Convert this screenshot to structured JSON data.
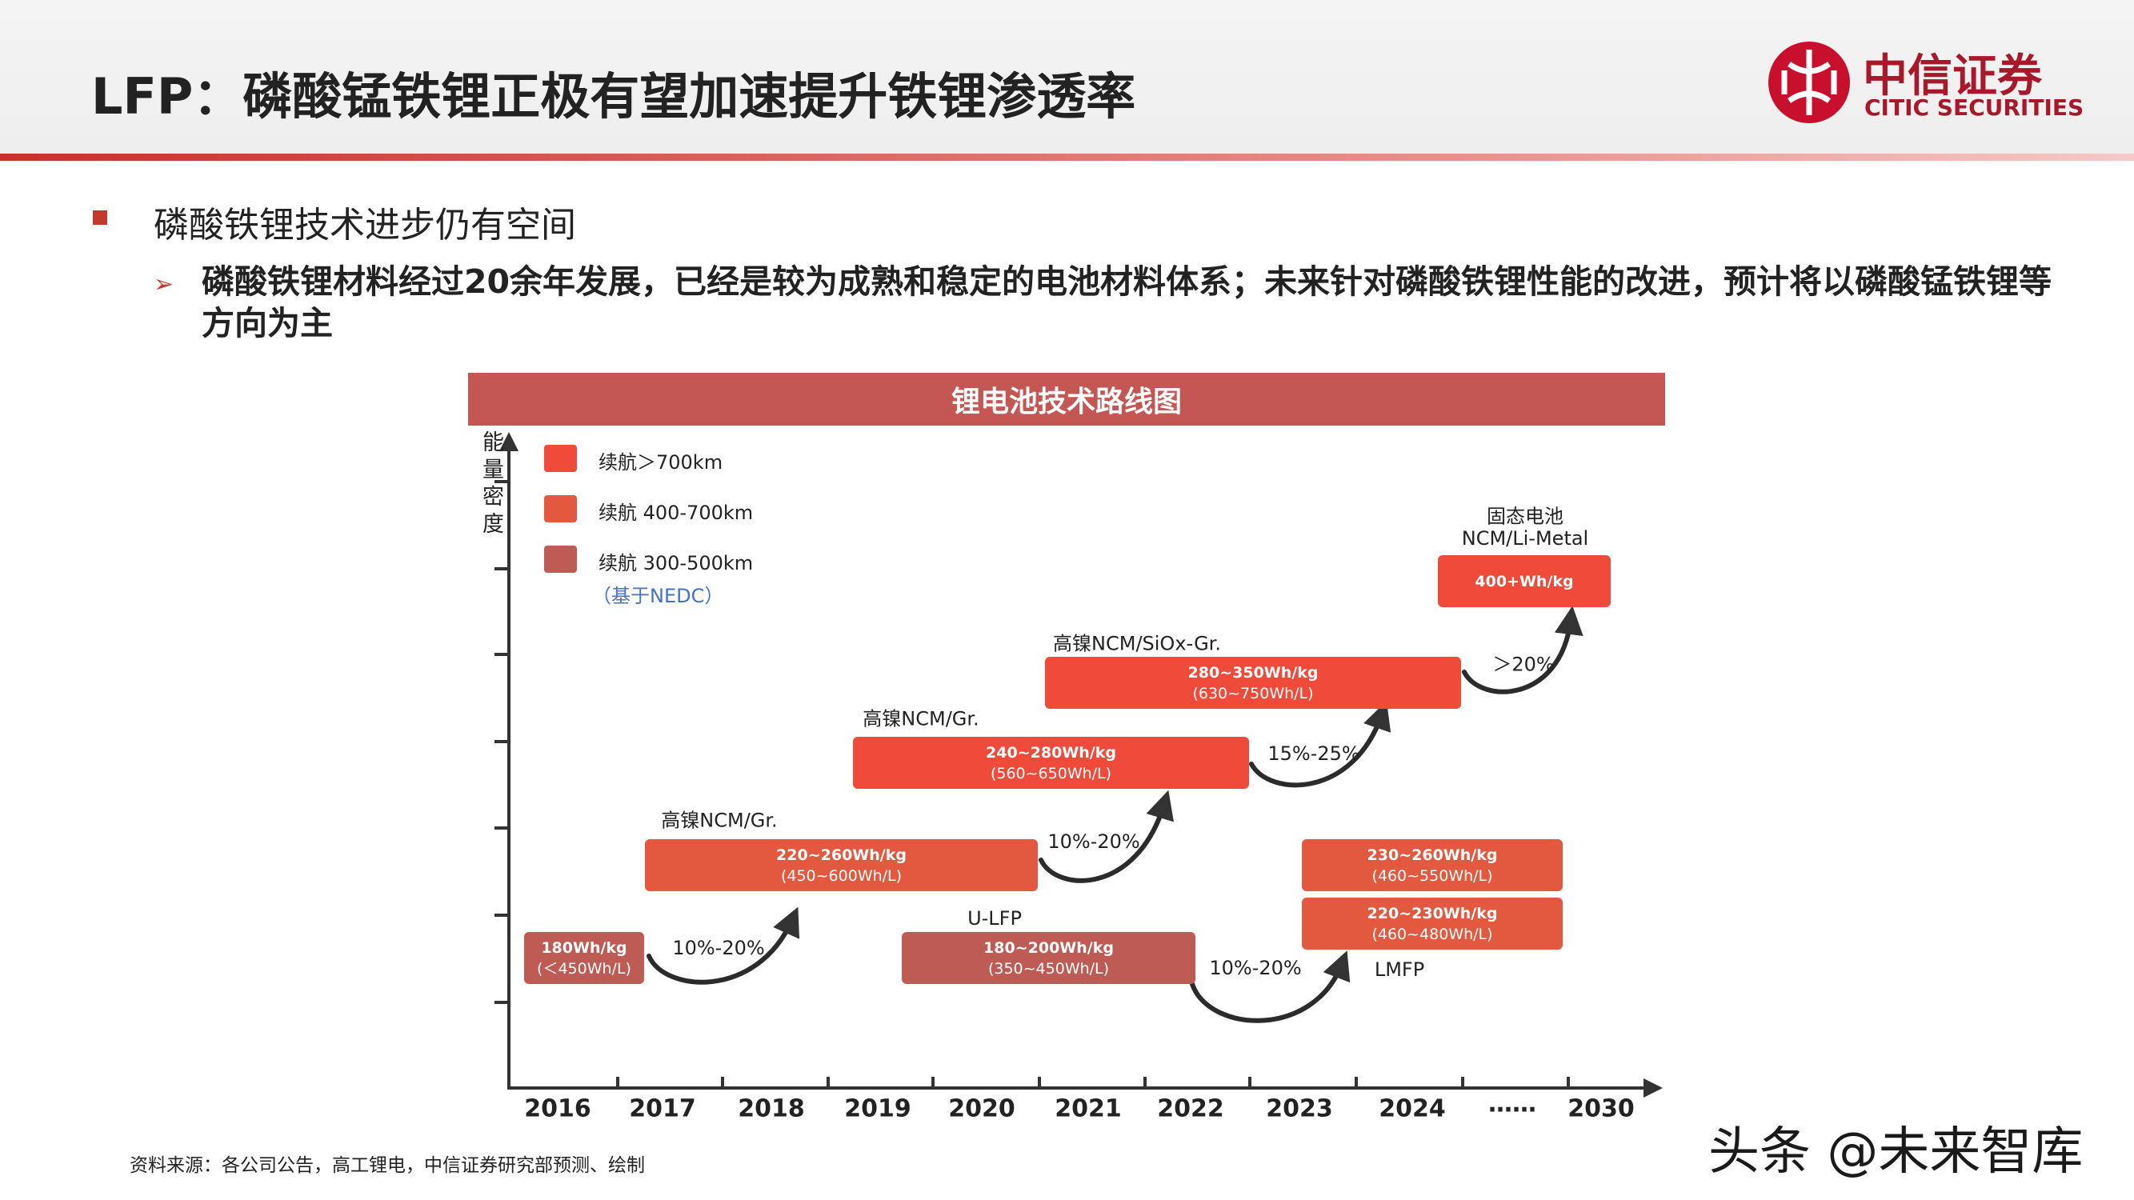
{
  "header": {
    "title": "LFP：磷酸锰铁锂正极有望加速提升铁锂渗透率",
    "logo": {
      "name": "中信证券",
      "name_en": "CITIC SECURITIES"
    }
  },
  "bullets": [
    {
      "text": "磷酸铁锂技术进步仍有空间",
      "sub": [
        "磷酸铁锂材料经过20余年发展，已经是较为成熟和稳定的电池材料体系；未来针对磷酸铁锂性能的改进，预计将以磷酸锰铁锂等方向为主"
      ]
    }
  ],
  "diagram": {
    "title": "锂电池技术路线图",
    "y_axis_label": "能量密度",
    "x_labels": [
      "2016",
      "2017",
      "2018",
      "2019",
      "2020",
      "2021",
      "2022",
      "2023",
      "2024",
      "……",
      "2030"
    ],
    "legend": [
      "续航＞700km",
      "续航 400-700km",
      "续航 300-500km"
    ],
    "legend_note": "（基于NEDC）",
    "boxes": [
      [
        "180Wh/kg",
        "(＜450Wh/L)"
      ],
      [
        "220~260Wh/kg",
        "(450~600Wh/L)"
      ],
      [
        "240~280Wh/kg",
        "(560~650Wh/L)"
      ],
      [
        "280~350Wh/kg",
        "(630~750Wh/L)"
      ],
      [
        "400+Wh/kg"
      ],
      [
        "180~200Wh/kg",
        "(350~450Wh/L)"
      ],
      [
        "230~260Wh/kg",
        "(460~550Wh/L)"
      ],
      [
        "220~230Wh/kg",
        "(460~480Wh/L)"
      ]
    ],
    "labels": [
      "高镍NCM/Gr.",
      "高镍NCM/Gr.",
      "高镍NCM/SiOx-Gr.",
      "固态电池",
      "NCM/Li-Metal",
      "U-LFP",
      "LMFP"
    ],
    "transitions": [
      "10%-20%",
      "10%-20%",
      "15%-25%",
      "＞20%",
      "10%-20%"
    ]
  },
  "source": "资料来源：各公司公告，高工锂电，中信证券研究部预测、绘制",
  "watermark": "头条 @未来智库"
}
